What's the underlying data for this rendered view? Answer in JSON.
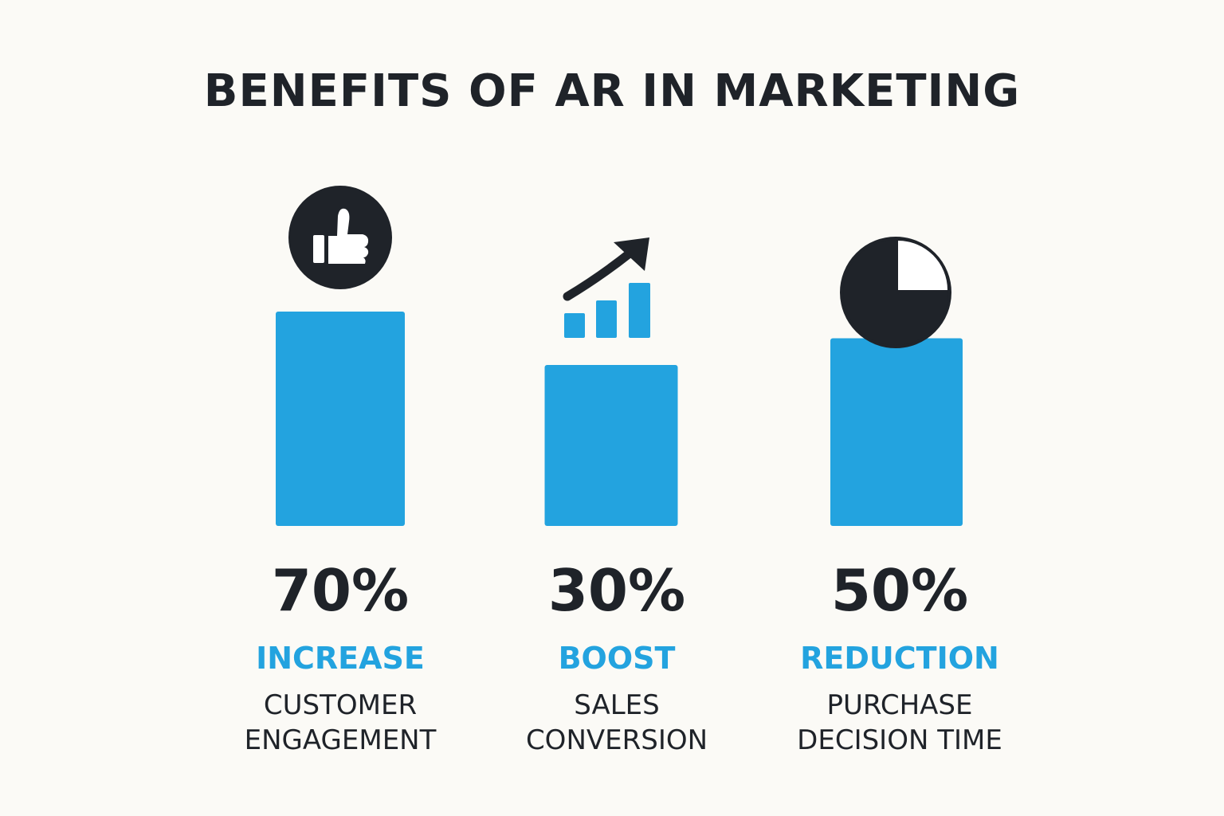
{
  "colors": {
    "accent": "#23a3df",
    "dark": "#1f2329",
    "background": "#fbfaf6"
  },
  "chart_data": {
    "type": "bar",
    "title": "BENEFITS OF AR IN MARKETING",
    "ylim": [
      0,
      100
    ],
    "categories": [
      "CUSTOMER ENGAGEMENT",
      "SALES CONVERSION",
      "PURCHASE DECISION TIME"
    ],
    "values": [
      70,
      30,
      50
    ],
    "items": [
      {
        "value_label": "70%",
        "verb": "INCREASE",
        "desc_lines": [
          "CUSTOMER",
          "ENGAGEMENT"
        ],
        "icon": "thumbs-up-icon"
      },
      {
        "value_label": "30%",
        "verb": "BOOST",
        "desc_lines": [
          "SALES",
          "CONVERSION"
        ],
        "icon": "growth-chart-icon"
      },
      {
        "value_label": "50%",
        "verb": "REDUCTION",
        "desc_lines": [
          "PURCHASE",
          "DECISION TIME"
        ],
        "icon": "clock-pie-icon"
      }
    ]
  }
}
